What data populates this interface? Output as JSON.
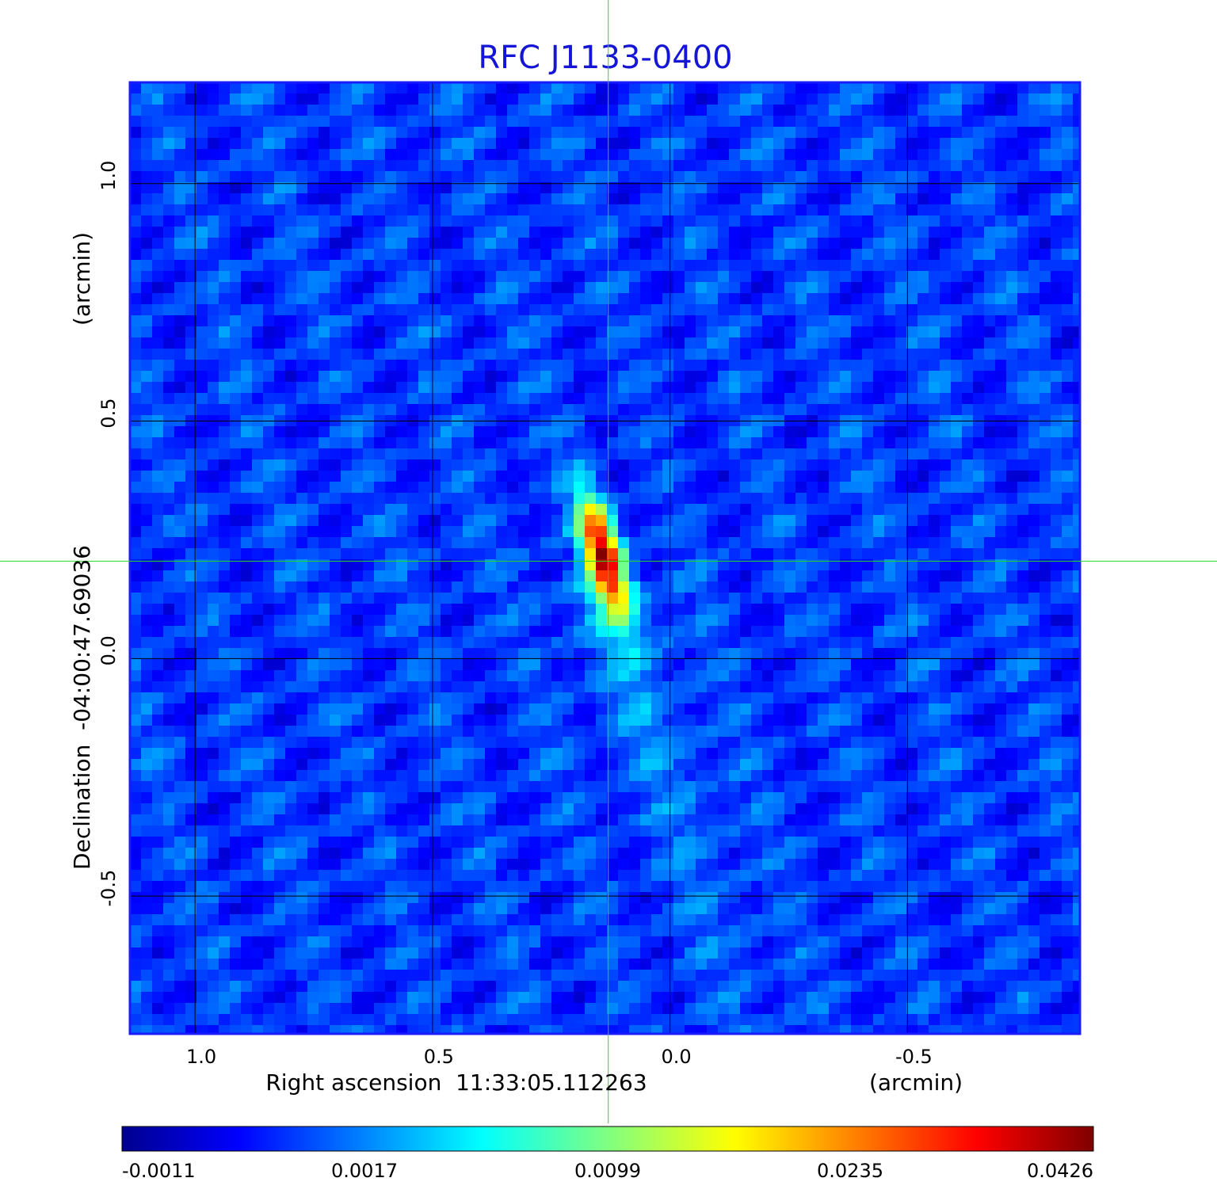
{
  "chart_data": {
    "type": "heatmap",
    "title": "RFC J1133-0400",
    "xlabel": "Right ascension  11:33:05.112263",
    "xunit": "(arcmin)",
    "ylabel": "Declination  -04:00:47.69036",
    "yunit": "(arcmin)",
    "x_ticks": [
      "1.0",
      "0.5",
      "0.0",
      "-0.5"
    ],
    "y_ticks": [
      "1.0",
      "0.5",
      "0.0",
      "-0.5"
    ],
    "x_tick_values": [
      1.0,
      0.5,
      0.0,
      -0.5
    ],
    "y_tick_values": [
      1.0,
      0.5,
      0.0,
      -0.5
    ],
    "xlim": [
      1.137,
      -0.863
    ],
    "ylim": [
      -0.79,
      1.213
    ],
    "grid": true,
    "crosshair": {
      "x": 0.13,
      "y": 0.205
    },
    "source_peak": {
      "x": 0.14,
      "y": 0.22,
      "value": 0.0426
    },
    "colorbar": {
      "colormap": "jet",
      "ticks": [
        "-0.0011",
        "0.0017",
        "0.0099",
        "0.0235",
        "0.0426"
      ],
      "values": [
        -0.0011,
        0.0017,
        0.0099,
        0.0235,
        0.0426
      ]
    },
    "colors": {
      "title": "#1515d6",
      "frame": "#1a1aff",
      "grid": "#000000",
      "crosshair": "#22dd22"
    }
  }
}
